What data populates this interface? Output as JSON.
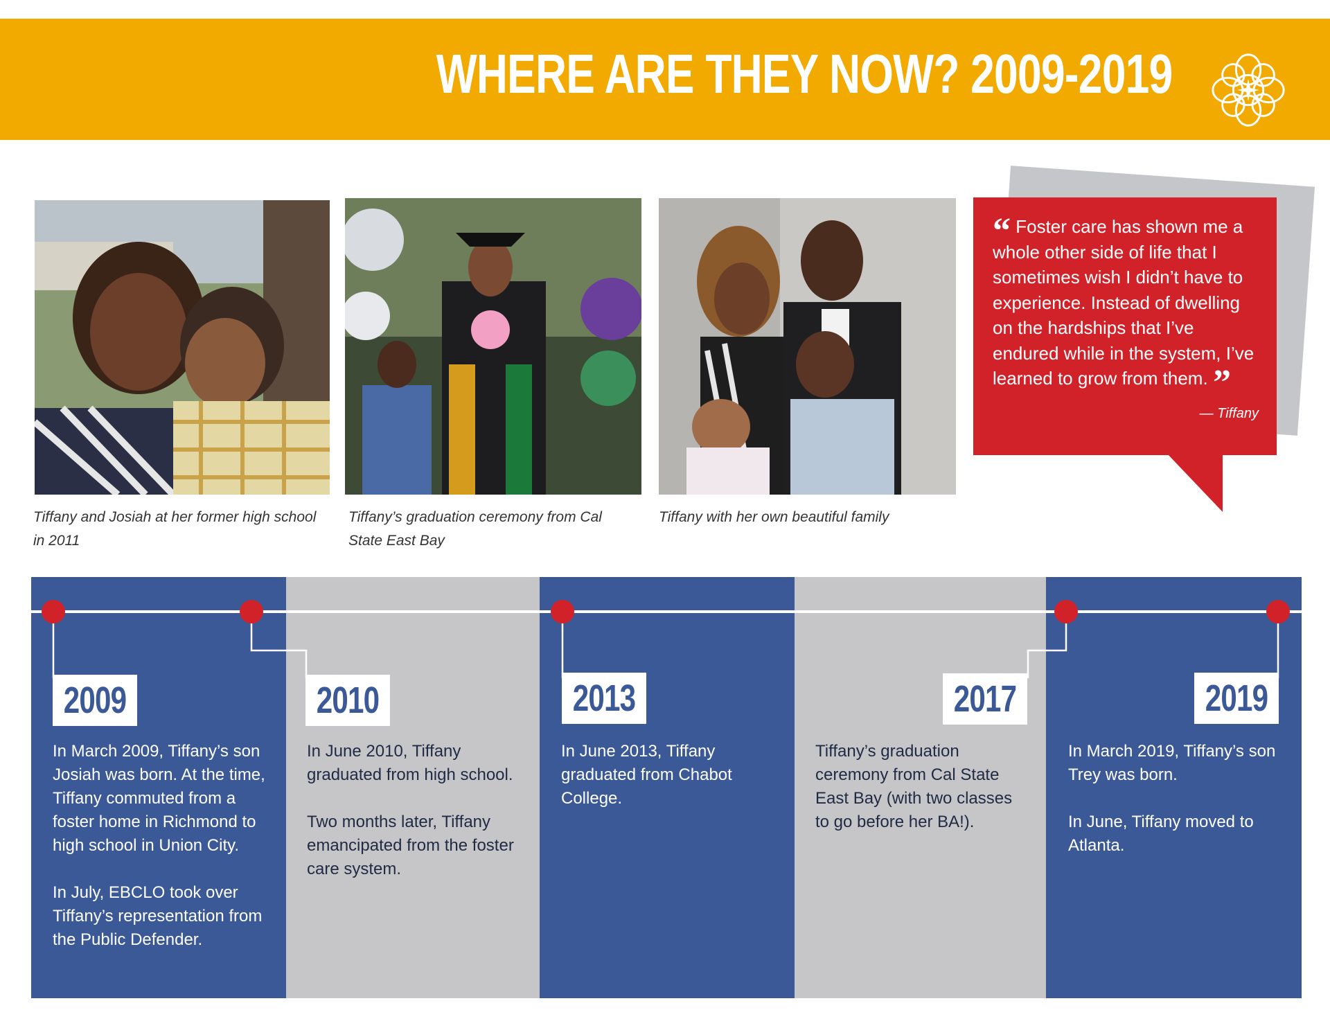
{
  "header": {
    "title": "WHERE ARE THEY NOW?  2009-2019",
    "logo_icon": "mandala-logo-icon",
    "color": "#f2a900"
  },
  "photos": [
    {
      "caption": "Tiffany and Josiah at her former high school in 2011"
    },
    {
      "caption": "Tiffany’s graduation ceremony from Cal State East Bay"
    },
    {
      "caption": "Tiffany with her own beautiful family"
    }
  ],
  "quote": {
    "text": "Foster care has shown me a whole other side of life that I sometimes wish I didn’t have to experience. Instead of dwelling on the hardships that I’ve endured while in the system, I’ve learned to grow from them.",
    "open_mark": "“",
    "close_mark": "”",
    "attribution": "— Tiffany",
    "color": "#d12229"
  },
  "timeline": {
    "colors": {
      "blue": "#3b5897",
      "gray": "#c6c6c8",
      "dot": "#d12229"
    },
    "entries": [
      {
        "year": "2009",
        "paragraphs": [
          "In March 2009, Tiffany’s son Josiah was born. At the time, Tiffany commuted from a foster home in Richmond to high school in Union City.",
          "In July, EBCLO took over Tiffany’s representation from the Public Defender."
        ]
      },
      {
        "year": "2010",
        "paragraphs": [
          "In June 2010, Tiffany graduated from high school.",
          "Two months later, Tiffany emancipated from the foster care system."
        ]
      },
      {
        "year": "2013",
        "paragraphs": [
          "In June 2013, Tiffany graduated from Chabot College."
        ]
      },
      {
        "year": "2017",
        "paragraphs": [
          "Tiffany’s graduation ceremony from Cal State East Bay (with two classes to go before her BA!)."
        ]
      },
      {
        "year": "2019",
        "paragraphs": [
          "In March 2019, Tiffany’s son Trey was born.",
          "In June, Tiffany moved to Atlanta."
        ]
      }
    ]
  }
}
